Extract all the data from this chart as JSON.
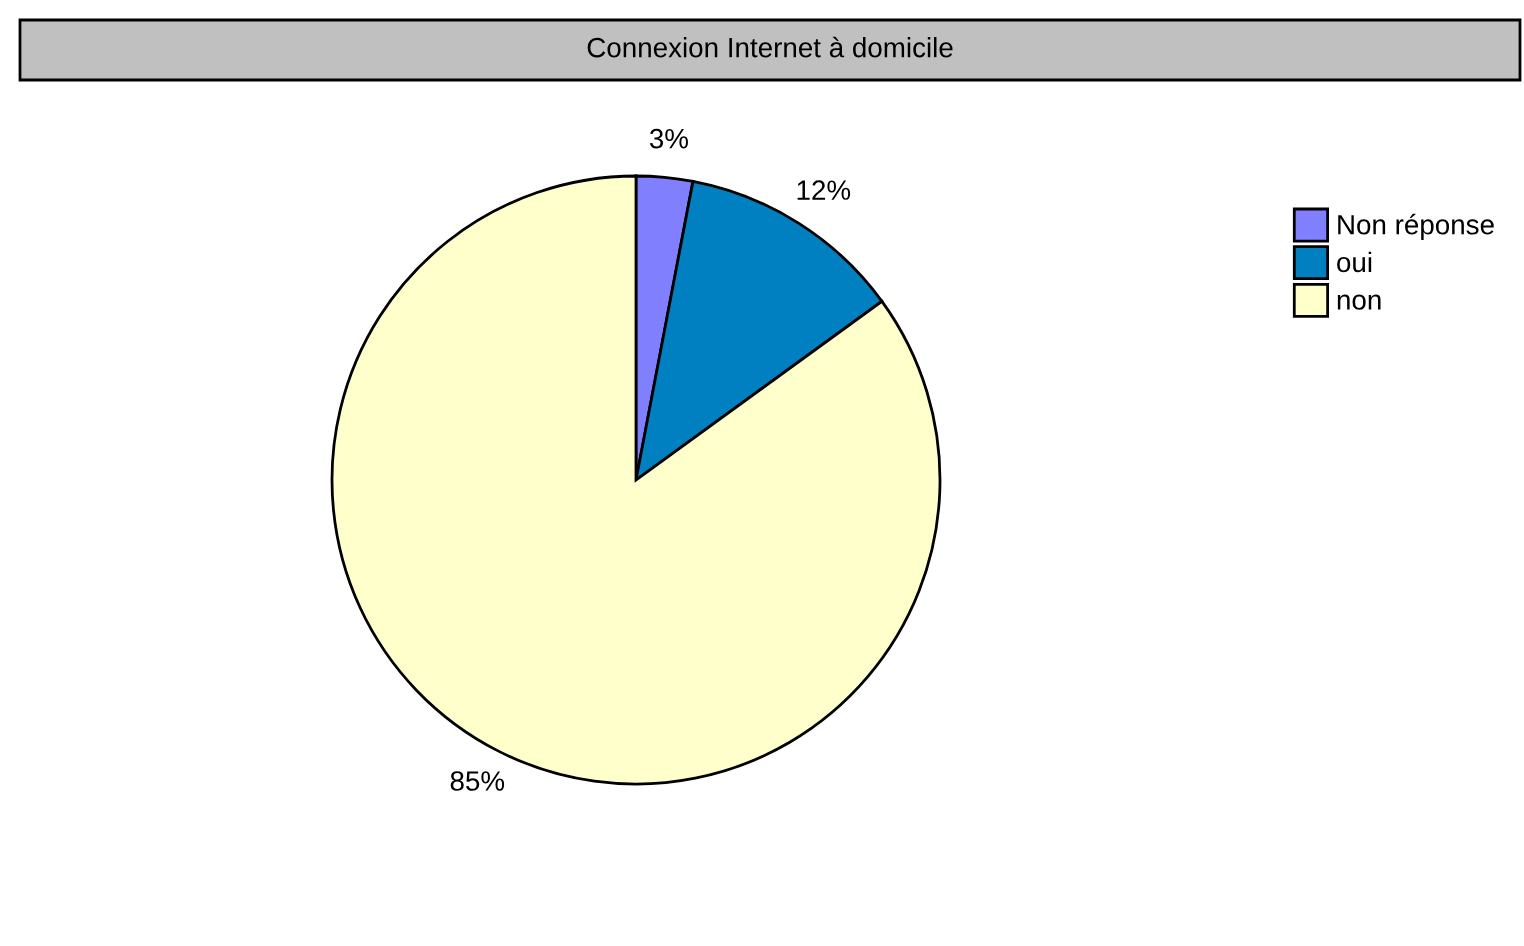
{
  "chart_data": {
    "type": "pie",
    "title": "Connexion Internet à domicile",
    "categories": [
      "Non réponse",
      "oui",
      "non"
    ],
    "values": [
      3,
      12,
      85
    ],
    "colors": [
      "#8080ff",
      "#0080c0",
      "#ffffcc"
    ],
    "value_labels": [
      "3%",
      "12%",
      "85%"
    ],
    "legend": "top right"
  }
}
